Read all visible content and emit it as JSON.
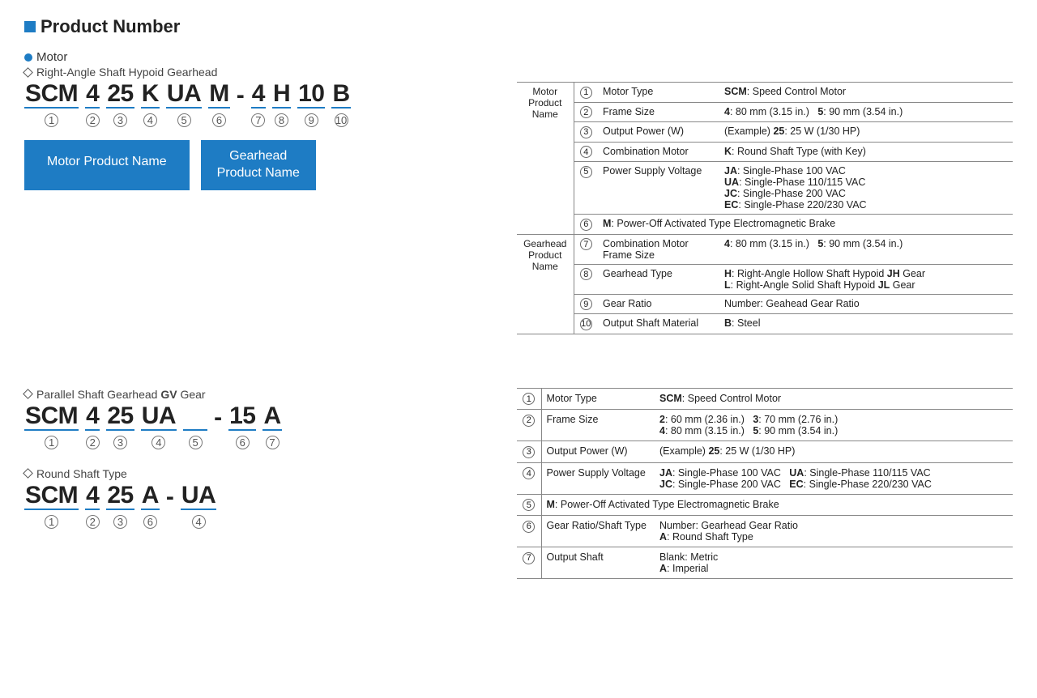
{
  "colors": {
    "accent": "#1e7cc4",
    "text": "#222",
    "border": "#888"
  },
  "title": "Product Number",
  "motor_label": "Motor",
  "section1": {
    "subtitle": "Right-Angle Shaft Hypoid Gearhead",
    "segments": [
      "SCM",
      "4",
      "25",
      "K",
      "UA",
      "M",
      "4",
      "H",
      "10",
      "B"
    ],
    "numbers": [
      "①",
      "②",
      "③",
      "④",
      "⑤",
      "⑥",
      "⑦",
      "⑧",
      "⑨",
      "⑩"
    ],
    "btn1": "Motor Product Name",
    "btn2": "Gearhead Product Name"
  },
  "table1": {
    "group1": "Motor Product Name",
    "group2": "Gearhead Product Name",
    "rows": [
      {
        "n": "①",
        "l": "Motor Type",
        "v": "<b>SCM</b>: Speed Control Motor"
      },
      {
        "n": "②",
        "l": "Frame Size",
        "v": "<b>4</b>: 80 mm (3.15 in.)&nbsp;&nbsp;&nbsp;<b>5</b>: 90 mm (3.54 in.)"
      },
      {
        "n": "③",
        "l": "Output Power (W)",
        "v": "(Example) <b>25</b>: 25 W (1/30 HP)"
      },
      {
        "n": "④",
        "l": "Combination Motor",
        "v": "<b>K</b>: Round Shaft Type (with Key)"
      },
      {
        "n": "⑤",
        "l": "Power Supply Voltage",
        "v": "<b>JA</b>: Single-Phase 100 VAC<br><b>UA</b>: Single-Phase 110/115 VAC<br><b>JC</b>: Single-Phase 200 VAC<br><b>EC</b>: Single-Phase 220/230 VAC"
      },
      {
        "n": "⑥",
        "l": "",
        "v": "<b>M</b>: Power-Off Activated Type Electromagnetic Brake",
        "span": true
      },
      {
        "n": "⑦",
        "l": "Combination Motor Frame Size",
        "v": "<b>4</b>: 80 mm (3.15 in.)&nbsp;&nbsp;&nbsp;<b>5</b>: 90 mm (3.54 in.)"
      },
      {
        "n": "⑧",
        "l": "Gearhead Type",
        "v": "<b>H</b>: Right-Angle Hollow Shaft Hypoid <b>JH</b> Gear<br><b>L</b>: Right-Angle Solid Shaft Hypoid <b>JL</b> Gear"
      },
      {
        "n": "⑨",
        "l": "Gear Ratio",
        "v": "Number: Geahead Gear Ratio"
      },
      {
        "n": "⑩",
        "l": "Output Shaft Material",
        "v": "<b>B</b>: Steel"
      }
    ]
  },
  "section2": {
    "subtitle": "Parallel Shaft Gearhead <b>GV</b> Gear",
    "segments": [
      "SCM",
      "4",
      "25",
      "UA",
      "",
      "15",
      "A"
    ],
    "numbers": [
      "①",
      "②",
      "③",
      "④",
      "⑤",
      "⑥",
      "⑦"
    ]
  },
  "section3": {
    "subtitle": "Round Shaft Type",
    "segments": [
      "SCM",
      "4",
      "25",
      "A",
      "UA"
    ],
    "numbers": [
      "①",
      "②",
      "③",
      "⑥",
      "④"
    ]
  },
  "table2": {
    "rows": [
      {
        "n": "①",
        "l": "Motor Type",
        "v": "<b>SCM</b>: Speed Control Motor"
      },
      {
        "n": "②",
        "l": "Frame Size",
        "v": "<b>2</b>: 60 mm (2.36 in.)&nbsp;&nbsp;&nbsp;<b>3</b>: 70 mm (2.76 in.)<br><b>4</b>: 80 mm (3.15 in.)&nbsp;&nbsp;&nbsp;<b>5</b>: 90 mm (3.54 in.)"
      },
      {
        "n": "③",
        "l": "Output Power (W)",
        "v": "(Example) <b>25</b>: 25 W (1/30 HP)"
      },
      {
        "n": "④",
        "l": "Power Supply Voltage",
        "v": "<b>JA</b>: Single-Phase 100 VAC&nbsp;&nbsp;&nbsp;<b>UA</b>: Single-Phase 110/115 VAC<br><b>JC</b>: Single-Phase 200 VAC&nbsp;&nbsp;&nbsp;<b>EC</b>: Single-Phase 220/230 VAC"
      },
      {
        "n": "⑤",
        "l": "",
        "v": "<b>M</b>: Power-Off Activated Type Electromagnetic Brake",
        "span": true
      },
      {
        "n": "⑥",
        "l": "Gear Ratio/Shaft Type",
        "v": "Number: Gearhead Gear Ratio<br><b>A</b>: Round Shaft Type"
      },
      {
        "n": "⑦",
        "l": "Output Shaft",
        "v": "Blank: Metric<br><b>A</b>: Imperial"
      }
    ]
  }
}
